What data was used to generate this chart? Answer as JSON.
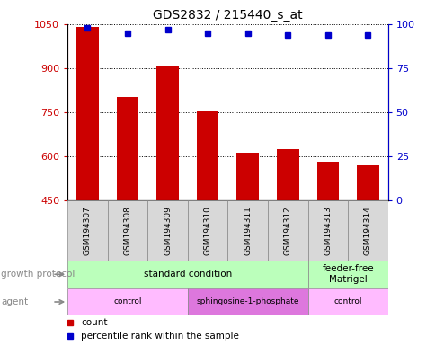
{
  "title": "GDS2832 / 215440_s_at",
  "samples": [
    "GSM194307",
    "GSM194308",
    "GSM194309",
    "GSM194310",
    "GSM194311",
    "GSM194312",
    "GSM194313",
    "GSM194314"
  ],
  "counts": [
    1040,
    800,
    905,
    752,
    610,
    625,
    582,
    570
  ],
  "percentiles": [
    98,
    95,
    97,
    95,
    95,
    94,
    94,
    94
  ],
  "ylim_left": [
    450,
    1050
  ],
  "ylim_right": [
    0,
    100
  ],
  "yticks_left": [
    450,
    600,
    750,
    900,
    1050
  ],
  "yticks_right": [
    0,
    25,
    50,
    75,
    100
  ],
  "bar_color": "#cc0000",
  "dot_color": "#0000cc",
  "growth_protocol_groups": [
    {
      "label": "standard condition",
      "start": 0,
      "end": 6,
      "color": "#bbffbb"
    },
    {
      "label": "feeder-free\nMatrigel",
      "start": 6,
      "end": 8,
      "color": "#bbffbb"
    }
  ],
  "agent_groups": [
    {
      "label": "control",
      "start": 0,
      "end": 3,
      "color": "#ffbbff"
    },
    {
      "label": "sphingosine-1-phosphate",
      "start": 3,
      "end": 6,
      "color": "#dd77dd"
    },
    {
      "label": "control",
      "start": 6,
      "end": 8,
      "color": "#ffbbff"
    }
  ],
  "row_labels": [
    "growth protocol",
    "agent"
  ],
  "legend_count_label": "count",
  "legend_percentile_label": "percentile rank within the sample",
  "tick_color_left": "#cc0000",
  "tick_color_right": "#0000cc"
}
